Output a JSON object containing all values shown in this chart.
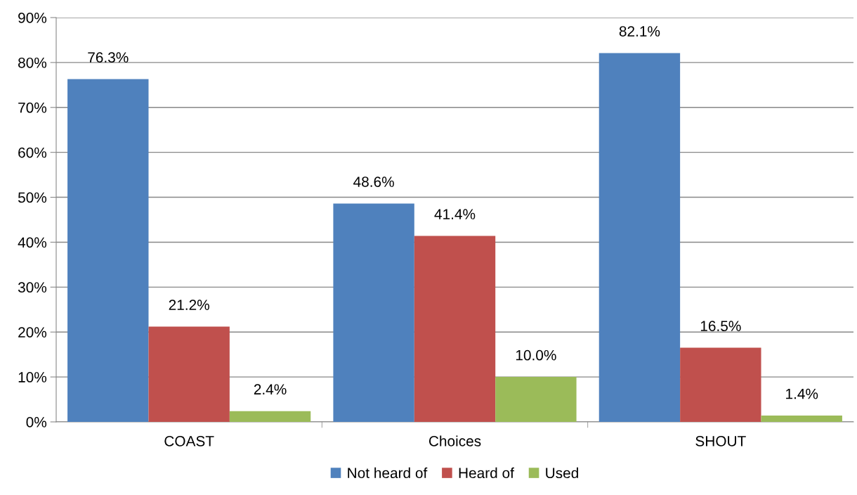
{
  "chart_data": {
    "type": "bar",
    "categories": [
      "COAST",
      "Choices",
      "SHOUT"
    ],
    "series": [
      {
        "name": "Not heard of",
        "color": "#4f81bd",
        "values": [
          76.3,
          48.6,
          82.1
        ],
        "value_labels": [
          "76.3%",
          "48.6%",
          "82.1%"
        ]
      },
      {
        "name": "Heard of",
        "color": "#c0504d",
        "values": [
          21.2,
          41.4,
          16.5
        ],
        "value_labels": [
          "21.2%",
          "41.4%",
          "16.5%"
        ]
      },
      {
        "name": "Used",
        "color": "#9bbb59",
        "values": [
          2.4,
          10.0,
          1.4
        ],
        "value_labels": [
          "2.4%",
          "10.0%",
          "1.4%"
        ]
      }
    ],
    "ylim": [
      0,
      90
    ],
    "yticks": [
      {
        "value": 0,
        "label": "0%"
      },
      {
        "value": 10,
        "label": "10%"
      },
      {
        "value": 20,
        "label": "20%"
      },
      {
        "value": 30,
        "label": "30%"
      },
      {
        "value": 40,
        "label": "40%"
      },
      {
        "value": 50,
        "label": "50%"
      },
      {
        "value": 60,
        "label": "60%"
      },
      {
        "value": 70,
        "label": "70%"
      },
      {
        "value": 80,
        "label": "80%"
      },
      {
        "value": 90,
        "label": "90%"
      }
    ],
    "grid": "y",
    "legend": "bottom"
  }
}
